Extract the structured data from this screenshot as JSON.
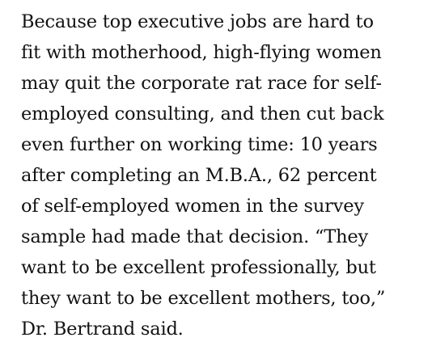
{
  "article": {
    "paragraph_lines": [
      "Because top executive jobs are hard to",
      "fit with motherhood, high-flying women",
      "may quit the corporate rat race for self-",
      "employed consulting, and then cut back",
      "even further on working time: 10 years",
      "after completing an M.B.A., 62 percent",
      "of self-employed women in the survey",
      "sample had made that decision. “They",
      "want to be excellent professionally, but",
      "they want to be excellent mothers, too,”",
      "Dr. Bertrand said."
    ]
  }
}
